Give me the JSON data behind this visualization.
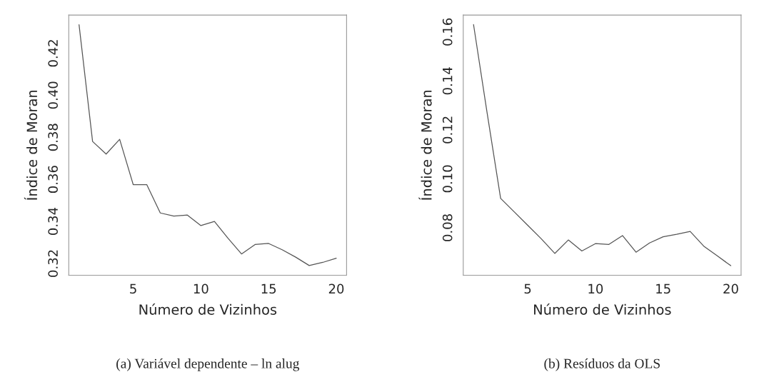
{
  "chart_data": [
    {
      "type": "line",
      "xlabel": "Número de Vizinhos",
      "ylabel": "Índice de Moran",
      "annotations": [
        "(a) Variável dependente – ln alug"
      ],
      "x": [
        1,
        2,
        3,
        4,
        5,
        6,
        7,
        8,
        9,
        10,
        11,
        12,
        13,
        14,
        15,
        16,
        17,
        18,
        19,
        20
      ],
      "series": [
        {
          "color": "#555555",
          "values": [
            0.4335,
            0.378,
            0.372,
            0.379,
            0.3575,
            0.3575,
            0.344,
            0.3425,
            0.343,
            0.338,
            0.34,
            0.332,
            0.3245,
            0.329,
            0.3295,
            0.3265,
            0.323,
            0.319,
            0.3205,
            0.3225
          ]
        }
      ],
      "xlim": [
        0.24,
        20.76
      ],
      "ylim": [
        0.3144,
        0.4381
      ],
      "xticks": [
        5,
        10,
        15,
        20
      ],
      "yticks": [
        0.32,
        0.34,
        0.36,
        0.38,
        {
          "value": 0.4,
          "label": "0.40"
        },
        0.42
      ],
      "grid": false,
      "legend": false
    },
    {
      "type": "line",
      "xlabel": "Número de Vizinhos",
      "ylabel": "Índice de Moran",
      "annotations": [
        "(b) Resíduos da OLS"
      ],
      "x": [
        1,
        2,
        3,
        4,
        5,
        6,
        7,
        8,
        9,
        10,
        11,
        12,
        13,
        14,
        15,
        16,
        17,
        18,
        19,
        20
      ],
      "series": [
        {
          "color": "#555555",
          "values": [
            0.163,
            0.127,
            0.092,
            0.0865,
            0.081,
            0.0755,
            0.0695,
            0.075,
            0.0705,
            0.0735,
            0.0732,
            0.0768,
            0.07,
            0.0738,
            0.0763,
            0.0773,
            0.0785,
            0.0725,
            0.0685,
            0.0645
          ]
        }
      ],
      "xlim": [
        0.24,
        20.76
      ],
      "ylim": [
        0.0606,
        0.1669
      ],
      "xticks": [
        5,
        10,
        15,
        20
      ],
      "yticks": [
        0.08,
        {
          "value": 0.1,
          "label": "0.10"
        },
        0.12,
        0.14,
        0.16
      ],
      "grid": false,
      "legend": false
    }
  ]
}
